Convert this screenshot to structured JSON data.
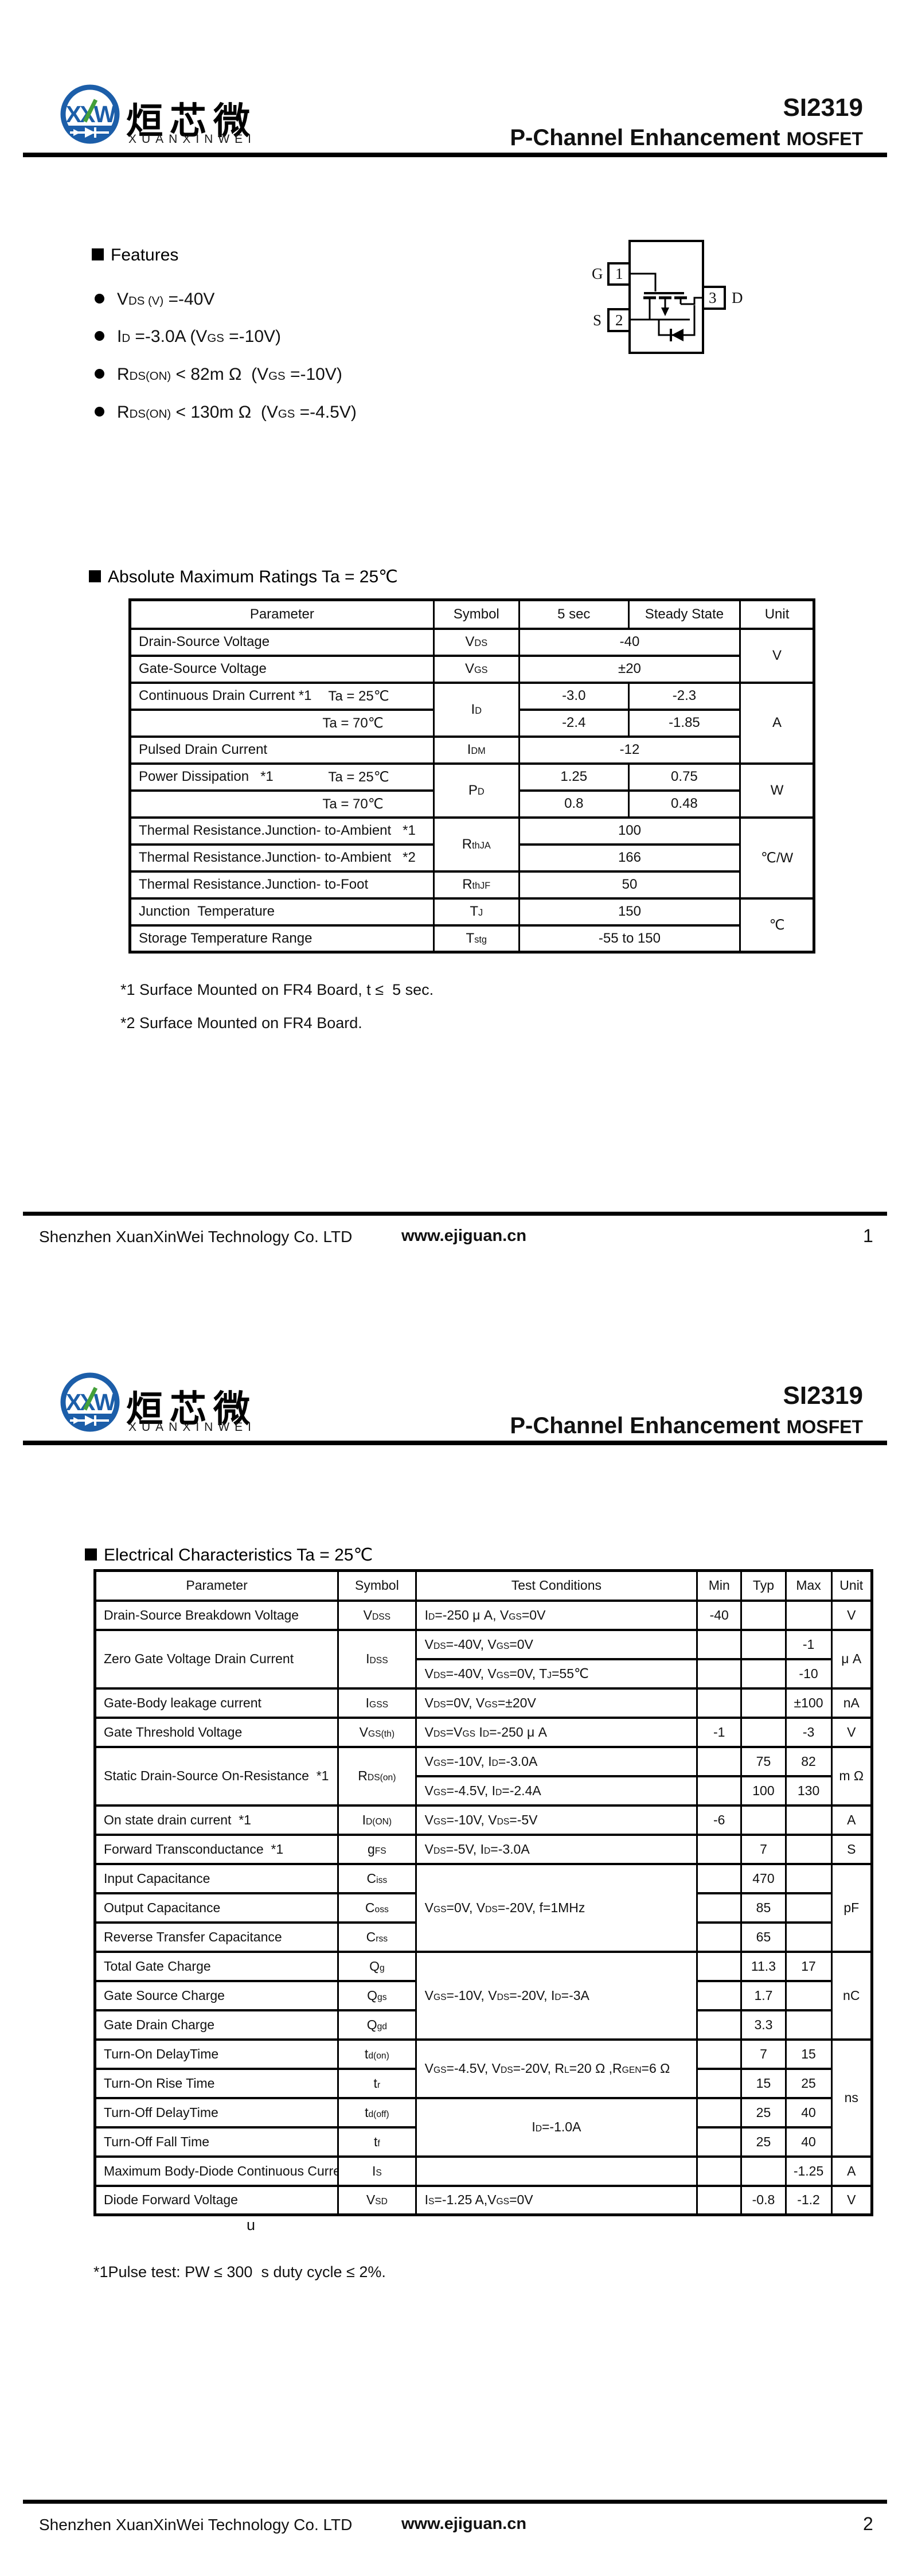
{
  "brand": {
    "chinese": "烜芯微",
    "roman": "XUANXINWEI",
    "logo_letters": "XXW",
    "logo_blue": "#1c5ea9",
    "logo_green": "#44a03a"
  },
  "header": {
    "part_number": "SI2319",
    "title_main": "P-Channel Enhancement ",
    "title_mosfet": "MOSFET"
  },
  "features": {
    "heading": "Features",
    "items": [
      "V~DS (V)~ =-40V",
      "I~D~ =-3.0A (V~GS~ =-10V)",
      "R~DS(ON)~ < 82m Ω  (V~GS~ =-10V)",
      "R~DS(ON)~ < 130m Ω  (V~GS~ =-4.5V)"
    ]
  },
  "package": {
    "pin1": "1",
    "pin2": "2",
    "pin3": "3",
    "gate": "G",
    "source": "S",
    "drain": "D"
  },
  "abs_max": {
    "heading": "Absolute Maximum Ratings Ta = 25℃",
    "headers": [
      "Parameter",
      "Symbol",
      "5 sec",
      "Steady State",
      "Unit"
    ],
    "rows": [
      {
        "param": "Drain-Source Voltage",
        "sym": "V~DS~",
        "val": "-40",
        "unit": "V"
      },
      {
        "param": "Gate-Source Voltage",
        "sym": "V~GS~",
        "val": "±20"
      },
      {
        "param": "Continuous Drain Current *1",
        "ta": "Ta = 25℃",
        "sym": "I~D~",
        "v1": "-3.0",
        "v2": "-2.3",
        "unit": "A"
      },
      {
        "ta": "Ta = 70℃",
        "v1": "-2.4",
        "v2": "-1.85"
      },
      {
        "param": "Pulsed Drain Current",
        "sym": "I~DM~",
        "val": "-12"
      },
      {
        "param": "Power Dissipation   *1",
        "ta": "Ta = 25℃",
        "sym": "P~D~",
        "v1": "1.25",
        "v2": "0.75",
        "unit": "W"
      },
      {
        "ta": "Ta = 70℃",
        "v1": "0.8",
        "v2": "0.48"
      },
      {
        "param": "Thermal Resistance.Junction- to-Ambient   *1",
        "sym": "R~thJA~",
        "val": "100",
        "unit": "℃/W"
      },
      {
        "param": "Thermal Resistance.Junction- to-Ambient   *2",
        "val": "166"
      },
      {
        "param": "Thermal Resistance.Junction- to-Foot",
        "sym": "R~thJF~",
        "val": "50"
      },
      {
        "param": "Junction  Temperature",
        "sym": "T~J~",
        "val": "150",
        "unit": "℃"
      },
      {
        "param": "Storage Temperature Range",
        "sym": "T~stg~",
        "val": "-55 to 150"
      }
    ],
    "notes": [
      "*1 Surface Mounted on FR4 Board, t ≤  5 sec.",
      "*2 Surface Mounted on FR4 Board."
    ]
  },
  "elec": {
    "heading": "Electrical Characteristics Ta = 25℃",
    "headers": [
      "Parameter",
      "Symbol",
      "Test Conditions",
      "Min",
      "Typ",
      "Max",
      "Unit"
    ],
    "rows": [
      {
        "param": "Drain-Source Breakdown Voltage",
        "sym": "V~DSS~",
        "cond": "I~D~=-250 μ A, V~GS~=0V",
        "min": "-40",
        "typ": "",
        "max": "",
        "unit": "V"
      },
      {
        "param": "Zero Gate Voltage Drain Current",
        "sym": "I~DSS~",
        "cond": "V~DS~=-40V, V~GS~=0V",
        "min": "",
        "typ": "",
        "max": "-1",
        "unit": "μ A"
      },
      {
        "cond": "V~DS~=-40V, V~GS~=0V, T~J~=55℃",
        "min": "",
        "typ": "",
        "max": "-10"
      },
      {
        "param": "Gate-Body leakage current",
        "sym": "I~GSS~",
        "cond": "V~DS~=0V, V~GS~=±20V",
        "min": "",
        "typ": "",
        "max": "±100",
        "unit": "nA"
      },
      {
        "param": "Gate Threshold Voltage",
        "sym": "V~GS(th)~",
        "cond": "V~DS~=V~GS~ I~D~=-250 μ A",
        "min": "-1",
        "typ": "",
        "max": "-3",
        "unit": "V"
      },
      {
        "param": "Static Drain-Source On-Resistance  *1",
        "sym": "R~DS(on)~",
        "cond": "V~GS~=-10V, I~D~=-3.0A",
        "min": "",
        "typ": "75",
        "max": "82",
        "unit": "m Ω"
      },
      {
        "cond": "V~GS~=-4.5V, I~D~=-2.4A",
        "min": "",
        "typ": "100",
        "max": "130"
      },
      {
        "param": "On state drain current  *1",
        "sym": "I~D(ON)~",
        "cond": "V~GS~=-10V, V~DS~=-5V",
        "min": "-6",
        "typ": "",
        "max": "",
        "unit": "A"
      },
      {
        "param": "Forward Transconductance  *1",
        "sym": "g~FS~",
        "cond": "V~DS~=-5V, I~D~=-3.0A",
        "min": "",
        "typ": "7",
        "max": "",
        "unit": "S"
      },
      {
        "param": "Input Capacitance",
        "sym": "C~iss~",
        "cond": "V~GS~=0V, V~DS~=-20V, f=1MHz",
        "min": "",
        "typ": "470",
        "max": "",
        "unit": "pF"
      },
      {
        "param": "Output Capacitance",
        "sym": "C~oss~",
        "min": "",
        "typ": "85",
        "max": ""
      },
      {
        "param": "Reverse Transfer Capacitance",
        "sym": "C~rss~",
        "min": "",
        "typ": "65",
        "max": ""
      },
      {
        "param": "Total Gate Charge",
        "sym": "Q~g~",
        "cond": "V~GS~=-10V, V~DS~=-20V, I~D~=-3A",
        "min": "",
        "typ": "11.3",
        "max": "17",
        "unit": "nC"
      },
      {
        "param": "Gate Source Charge",
        "sym": "Q~gs~",
        "min": "",
        "typ": "1.7",
        "max": ""
      },
      {
        "param": "Gate Drain Charge",
        "sym": "Q~gd~",
        "min": "",
        "typ": "3.3",
        "max": ""
      },
      {
        "param": "Turn-On DelayTime",
        "sym": "t~d(on)~",
        "cond": "V~GS~=-4.5V, V~DS~=-20V, R~L~=20 Ω ,R~GEN~=6 Ω",
        "min": "",
        "typ": "7",
        "max": "15",
        "unit": "ns"
      },
      {
        "param": "Turn-On Rise Time",
        "sym": "t~r~",
        "min": "",
        "typ": "15",
        "max": "25"
      },
      {
        "param": "Turn-Off DelayTime",
        "sym": "t~d(off)~",
        "cond": "I~D~=-1.0A",
        "min": "",
        "typ": "25",
        "max": "40"
      },
      {
        "param": "Turn-Off Fall Time",
        "sym": "t~f~",
        "min": "",
        "typ": "25",
        "max": "40"
      },
      {
        "param": "Maximum Body-Diode Continuous Current",
        "sym": "I~S~",
        "cond": "",
        "min": "",
        "typ": "",
        "max": "-1.25",
        "unit": "A"
      },
      {
        "param": "Diode Forward Voltage",
        "sym": "V~SD~",
        "cond": "I~S~=-1.25 A,V~GS~=0V",
        "min": "",
        "typ": "-0.8",
        "max": "-1.2",
        "unit": "V"
      }
    ],
    "stray": "u",
    "note": "*1Pulse test: PW ≤ 300  s duty cycle ≤ 2%."
  },
  "footer": {
    "company": "Shenzhen XuanXinWei Technology Co. LTD",
    "website": "www.ejiguan.cn",
    "page1": "1",
    "page2": "2"
  }
}
